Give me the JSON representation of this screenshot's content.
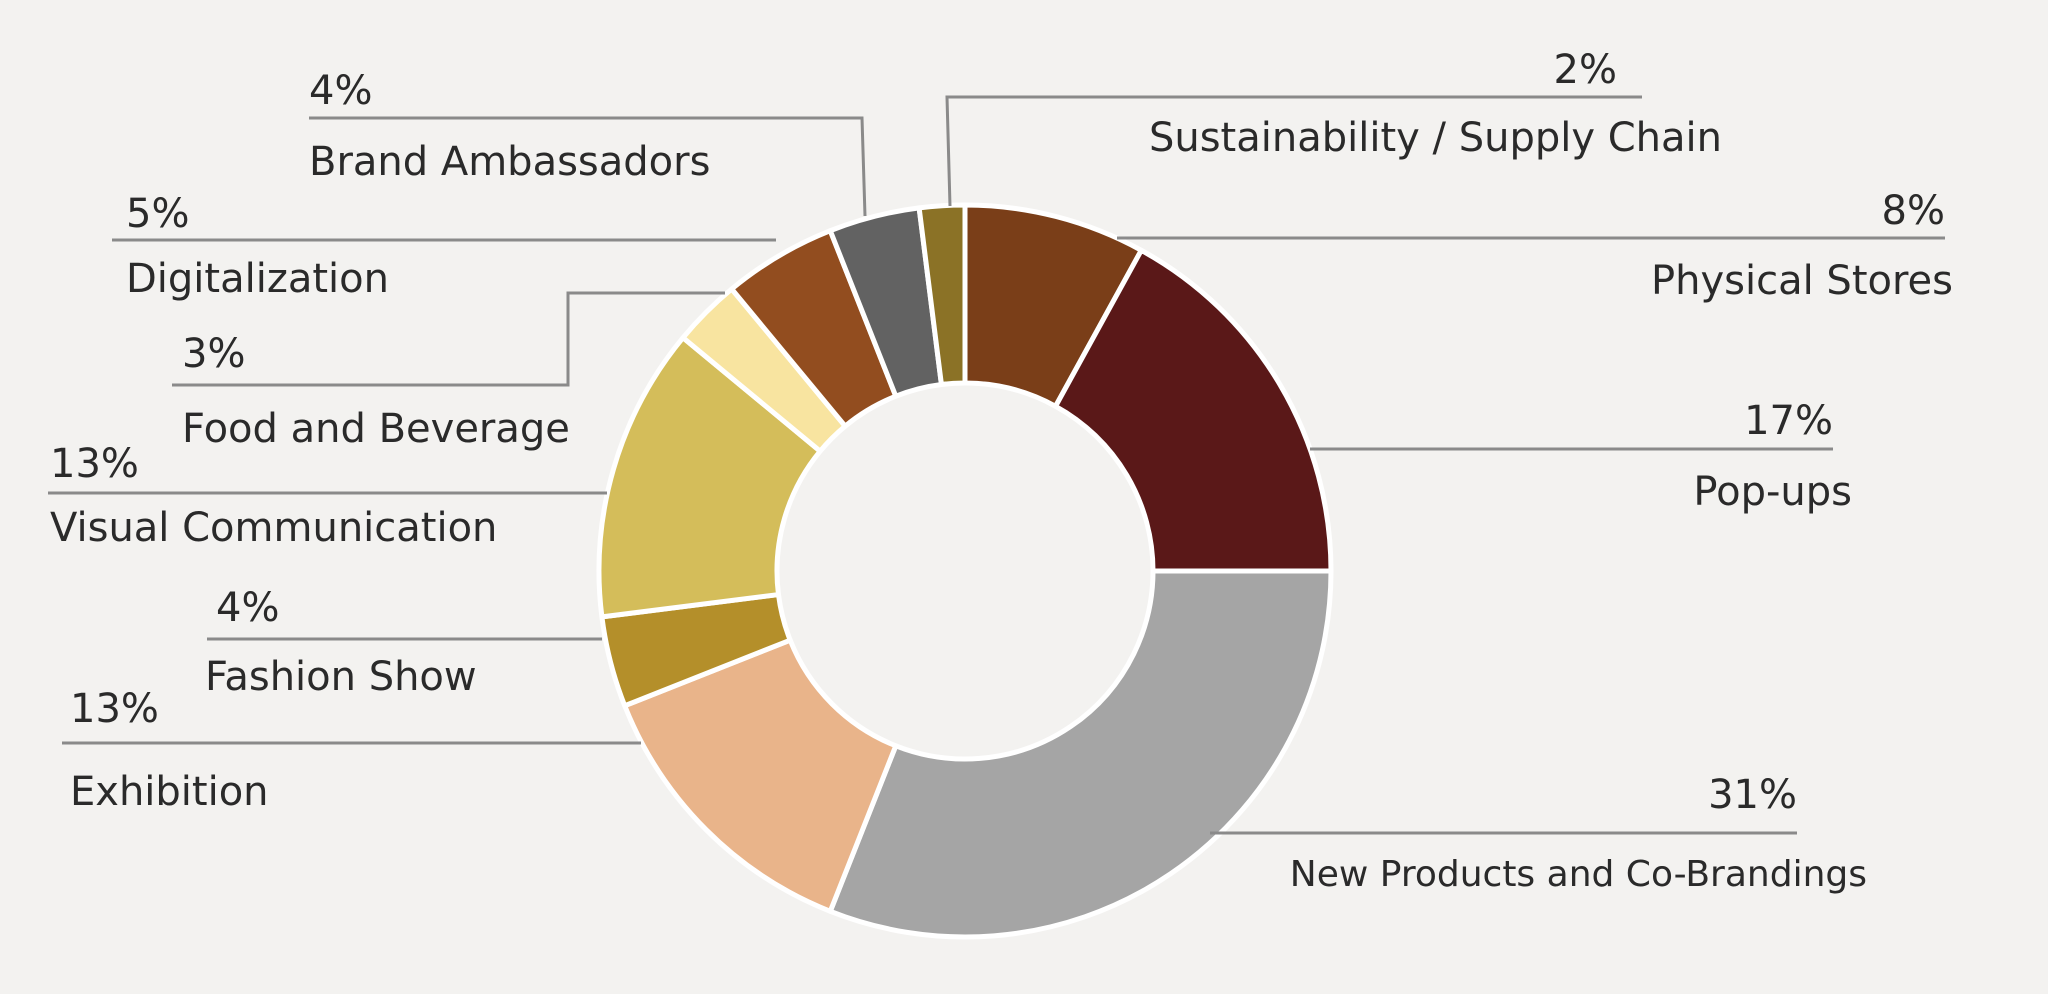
{
  "chart_data": {
    "type": "pie",
    "style": "donut",
    "title": "",
    "categories": [
      "Physical Stores",
      "Pop-ups",
      "New Products and Co-Brandings",
      "Exhibition",
      "Fashion Show",
      "Visual Communication",
      "Food and Beverage",
      "Digitalization",
      "Brand Ambassadors",
      "Sustainability / Supply Chain"
    ],
    "values": [
      8,
      17,
      31,
      13,
      4,
      13,
      3,
      5,
      4,
      2
    ],
    "value_labels": [
      "8%",
      "17%",
      "31%",
      "13%",
      "4%",
      "13%",
      "3%",
      "5%",
      "4%",
      "2%"
    ],
    "colors": [
      "#7a3e18",
      "#5a1818",
      "#a5a5a5",
      "#e9b48a",
      "#b48f2a",
      "#d4bd5a",
      "#f8e4a0",
      "#924d1f",
      "#626262",
      "#8b7226"
    ],
    "legend": "none (labels placed outside with leader lines)",
    "start_angle": "top, clockwise"
  }
}
